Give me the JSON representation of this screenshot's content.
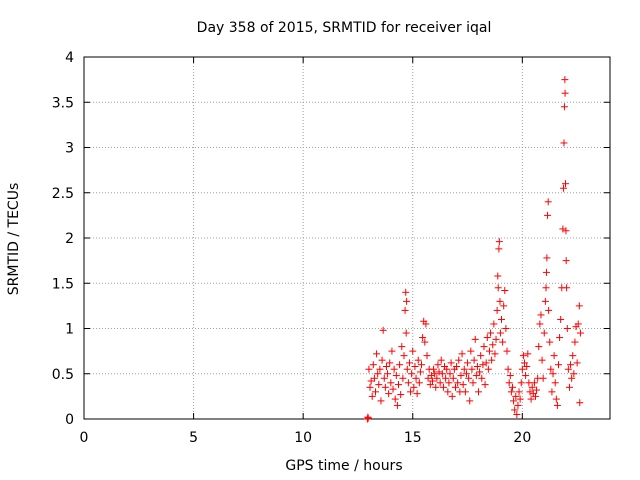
{
  "chart_data": {
    "type": "scatter",
    "title": "Day 358 of 2015, SRMTID for receiver iqal",
    "xlabel": "GPS time / hours",
    "ylabel": "SRMTID / TECUs",
    "xlim": [
      0,
      24
    ],
    "ylim": [
      0,
      4
    ],
    "xticks": [
      0,
      5,
      10,
      15,
      20
    ],
    "yticks": [
      0,
      0.5,
      1,
      1.5,
      2,
      2.5,
      3,
      3.5,
      4
    ],
    "ytick_labels": [
      "0",
      "0.5",
      "1",
      "1.5",
      "2",
      "2.5",
      "3",
      "3.5",
      "4"
    ],
    "grid": true,
    "marker": "+",
    "series_color": "#ff0000",
    "series": [
      {
        "name": "SRMTID",
        "points": [
          [
            12.93,
            0.0
          ],
          [
            12.95,
            0.02
          ],
          [
            12.97,
            0.01
          ],
          [
            13.0,
            0.55
          ],
          [
            13.05,
            0.35
          ],
          [
            13.1,
            0.42
          ],
          [
            13.15,
            0.25
          ],
          [
            13.2,
            0.6
          ],
          [
            13.25,
            0.45
          ],
          [
            13.3,
            0.3
          ],
          [
            13.35,
            0.72
          ],
          [
            13.4,
            0.5
          ],
          [
            13.45,
            0.38
          ],
          [
            13.5,
            0.55
          ],
          [
            13.55,
            0.2
          ],
          [
            13.6,
            0.65
          ],
          [
            13.65,
            0.98
          ],
          [
            13.7,
            0.45
          ],
          [
            13.75,
            0.35
          ],
          [
            13.8,
            0.58
          ],
          [
            13.85,
            0.5
          ],
          [
            13.9,
            0.28
          ],
          [
            13.95,
            0.62
          ],
          [
            14.0,
            0.4
          ],
          [
            14.05,
            0.75
          ],
          [
            14.1,
            0.33
          ],
          [
            14.15,
            0.55
          ],
          [
            14.2,
            0.22
          ],
          [
            14.25,
            0.48
          ],
          [
            14.3,
            0.15
          ],
          [
            14.35,
            0.38
          ],
          [
            14.4,
            0.6
          ],
          [
            14.45,
            0.27
          ],
          [
            14.5,
            0.8
          ],
          [
            14.55,
            0.45
          ],
          [
            14.6,
            0.7
          ],
          [
            14.65,
            1.2
          ],
          [
            14.68,
            1.4
          ],
          [
            14.7,
            0.95
          ],
          [
            14.72,
            1.3
          ],
          [
            14.75,
            0.55
          ],
          [
            14.8,
            0.4
          ],
          [
            14.85,
            0.62
          ],
          [
            14.9,
            0.3
          ],
          [
            14.95,
            0.5
          ],
          [
            15.0,
            0.75
          ],
          [
            15.05,
            0.35
          ],
          [
            15.1,
            0.58
          ],
          [
            15.15,
            0.45
          ],
          [
            15.2,
            0.28
          ],
          [
            15.25,
            0.65
          ],
          [
            15.3,
            0.4
          ],
          [
            15.35,
            0.52
          ],
          [
            15.4,
            0.6
          ],
          [
            15.45,
            0.9
          ],
          [
            15.5,
            1.08
          ],
          [
            15.55,
            0.85
          ],
          [
            15.6,
            1.05
          ],
          [
            15.65,
            0.7
          ],
          [
            15.7,
            0.45
          ],
          [
            15.75,
            0.55
          ],
          [
            15.8,
            0.38
          ],
          [
            15.85,
            0.48
          ],
          [
            15.9,
            0.42
          ],
          [
            15.95,
            0.55
          ],
          [
            16.0,
            0.5
          ],
          [
            16.05,
            0.35
          ],
          [
            16.1,
            0.45
          ],
          [
            16.15,
            0.6
          ],
          [
            16.2,
            0.52
          ],
          [
            16.25,
            0.4
          ],
          [
            16.3,
            0.65
          ],
          [
            16.35,
            0.5
          ],
          [
            16.4,
            0.35
          ],
          [
            16.45,
            0.58
          ],
          [
            16.5,
            0.45
          ],
          [
            16.55,
            0.55
          ],
          [
            16.6,
            0.3
          ],
          [
            16.65,
            0.4
          ],
          [
            16.7,
            0.5
          ],
          [
            16.75,
            0.62
          ],
          [
            16.8,
            0.25
          ],
          [
            16.85,
            0.45
          ],
          [
            16.9,
            0.55
          ],
          [
            16.95,
            0.35
          ],
          [
            17.0,
            0.58
          ],
          [
            17.05,
            0.4
          ],
          [
            17.1,
            0.65
          ],
          [
            17.15,
            0.3
          ],
          [
            17.2,
            0.48
          ],
          [
            17.25,
            0.72
          ],
          [
            17.3,
            0.38
          ],
          [
            17.35,
            0.55
          ],
          [
            17.4,
            0.3
          ],
          [
            17.45,
            0.5
          ],
          [
            17.5,
            0.62
          ],
          [
            17.55,
            0.45
          ],
          [
            17.6,
            0.2
          ],
          [
            17.65,
            0.75
          ],
          [
            17.7,
            0.55
          ],
          [
            17.75,
            0.4
          ],
          [
            17.8,
            0.65
          ],
          [
            17.85,
            0.88
          ],
          [
            17.9,
            0.48
          ],
          [
            17.95,
            0.58
          ],
          [
            18.0,
            0.3
          ],
          [
            18.05,
            0.52
          ],
          [
            18.1,
            0.7
          ],
          [
            18.15,
            0.45
          ],
          [
            18.2,
            0.6
          ],
          [
            18.25,
            0.8
          ],
          [
            18.3,
            0.38
          ],
          [
            18.35,
            0.62
          ],
          [
            18.4,
            0.9
          ],
          [
            18.45,
            0.55
          ],
          [
            18.5,
            0.75
          ],
          [
            18.55,
            0.95
          ],
          [
            18.6,
            0.65
          ],
          [
            18.65,
            0.82
          ],
          [
            18.7,
            1.05
          ],
          [
            18.75,
            0.72
          ],
          [
            18.8,
            0.88
          ],
          [
            18.85,
            1.2
          ],
          [
            18.88,
            1.58
          ],
          [
            18.9,
            1.45
          ],
          [
            18.93,
            1.88
          ],
          [
            18.95,
            1.96
          ],
          [
            18.98,
            1.3
          ],
          [
            19.0,
            0.95
          ],
          [
            19.05,
            1.1
          ],
          [
            19.1,
            0.85
          ],
          [
            19.15,
            1.25
          ],
          [
            19.2,
            1.42
          ],
          [
            19.25,
            1.0
          ],
          [
            19.3,
            0.75
          ],
          [
            19.35,
            0.55
          ],
          [
            19.4,
            0.4
          ],
          [
            19.45,
            0.48
          ],
          [
            19.5,
            0.3
          ],
          [
            19.55,
            0.35
          ],
          [
            19.6,
            0.2
          ],
          [
            19.65,
            0.1
          ],
          [
            19.7,
            0.25
          ],
          [
            19.75,
            0.05
          ],
          [
            19.8,
            0.15
          ],
          [
            19.85,
            0.3
          ],
          [
            19.9,
            0.22
          ],
          [
            19.95,
            0.4
          ],
          [
            20.0,
            0.55
          ],
          [
            20.05,
            0.7
          ],
          [
            20.1,
            0.62
          ],
          [
            20.15,
            0.48
          ],
          [
            20.2,
            0.58
          ],
          [
            20.25,
            0.72
          ],
          [
            20.3,
            0.4
          ],
          [
            20.35,
            0.3
          ],
          [
            20.4,
            0.22
          ],
          [
            20.45,
            0.35
          ],
          [
            20.5,
            0.28
          ],
          [
            20.55,
            0.4
          ],
          [
            20.6,
            0.25
          ],
          [
            20.65,
            0.32
          ],
          [
            20.7,
            0.45
          ],
          [
            20.75,
            0.8
          ],
          [
            20.8,
            1.05
          ],
          [
            20.85,
            1.15
          ],
          [
            20.9,
            0.65
          ],
          [
            20.95,
            0.45
          ],
          [
            21.0,
            0.95
          ],
          [
            21.05,
            1.3
          ],
          [
            21.08,
            1.45
          ],
          [
            21.1,
            1.62
          ],
          [
            21.12,
            1.78
          ],
          [
            21.15,
            2.25
          ],
          [
            21.18,
            2.4
          ],
          [
            21.2,
            1.2
          ],
          [
            21.25,
            0.85
          ],
          [
            21.3,
            0.55
          ],
          [
            21.35,
            0.3
          ],
          [
            21.4,
            0.5
          ],
          [
            21.45,
            0.7
          ],
          [
            21.5,
            0.4
          ],
          [
            21.55,
            0.22
          ],
          [
            21.6,
            0.15
          ],
          [
            21.65,
            0.6
          ],
          [
            21.7,
            0.9
          ],
          [
            21.75,
            1.1
          ],
          [
            21.8,
            1.45
          ],
          [
            21.85,
            2.1
          ],
          [
            21.88,
            2.55
          ],
          [
            21.9,
            3.05
          ],
          [
            21.92,
            3.45
          ],
          [
            21.94,
            3.75
          ],
          [
            21.95,
            3.6
          ],
          [
            21.97,
            2.6
          ],
          [
            21.99,
            2.08
          ],
          [
            22.0,
            1.75
          ],
          [
            22.02,
            1.45
          ],
          [
            22.05,
            1.0
          ],
          [
            22.1,
            0.55
          ],
          [
            22.15,
            0.35
          ],
          [
            22.2,
            0.6
          ],
          [
            22.25,
            0.45
          ],
          [
            22.3,
            0.7
          ],
          [
            22.35,
            0.5
          ],
          [
            22.4,
            0.85
          ],
          [
            22.45,
            1.02
          ],
          [
            22.5,
            0.62
          ],
          [
            22.55,
            1.05
          ],
          [
            22.6,
            1.25
          ],
          [
            22.62,
            0.18
          ],
          [
            22.65,
            0.95
          ]
        ]
      }
    ]
  }
}
